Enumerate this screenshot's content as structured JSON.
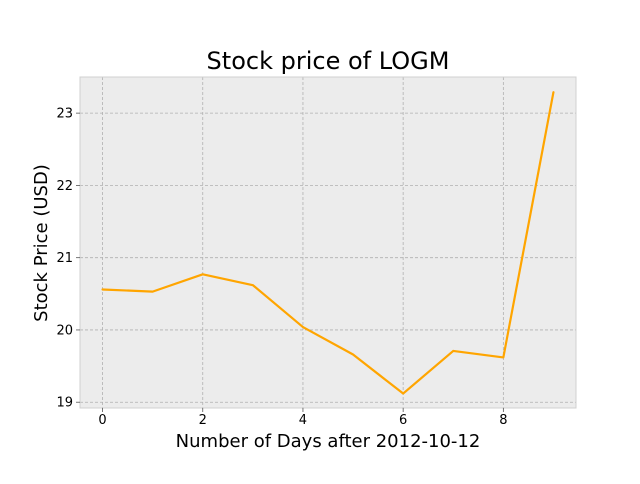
{
  "chart_data": {
    "type": "line",
    "title": "Stock price of LOGM",
    "xlabel": "Number of Days after 2012-10-12",
    "ylabel": "Stock Price (USD)",
    "xlim": [
      -0.45,
      9.45
    ],
    "ylim": [
      18.92,
      23.5
    ],
    "x_ticks": [
      0,
      2,
      4,
      6,
      8
    ],
    "y_ticks": [
      19,
      20,
      21,
      22,
      23
    ],
    "grid": true,
    "legend": "none",
    "series": [
      {
        "x": [
          0,
          1,
          2,
          3,
          4,
          5,
          6,
          7,
          8,
          9
        ],
        "values": [
          20.56,
          20.53,
          20.77,
          20.62,
          20.04,
          19.66,
          19.12,
          19.71,
          19.62,
          23.29
        ]
      }
    ],
    "colors": {
      "line": "#ffa500",
      "plot_background": "#ececec",
      "grid": "#b0b0b0",
      "spine": "#d0d0d0"
    }
  }
}
